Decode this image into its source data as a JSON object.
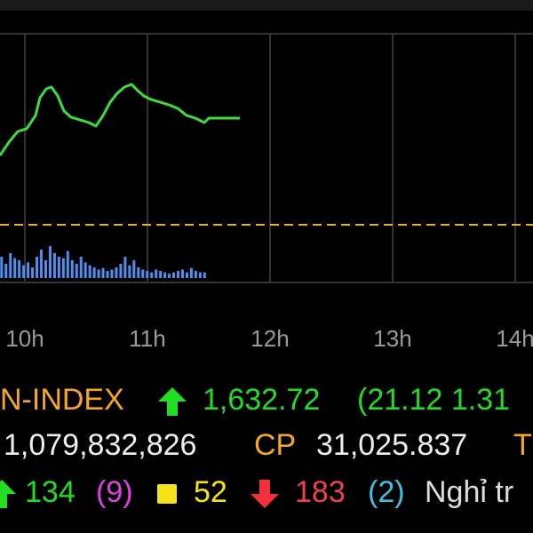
{
  "chart_data": {
    "type": "line",
    "xlim": [
      9.797,
      14.145
    ],
    "xticks": [
      {
        "value": 10,
        "label": "10h"
      },
      {
        "value": 11,
        "label": "11h"
      },
      {
        "value": 12,
        "label": "12h"
      },
      {
        "value": 13,
        "label": "13h"
      },
      {
        "value": 14,
        "label": "14h"
      }
    ],
    "ylim": [
      1600.16,
      1649.44
    ],
    "reference": 1611.6,
    "reference_color": "#e6b422",
    "grid": true,
    "x": [
      9.797,
      9.87,
      9.942,
      10.014,
      10.087,
      10.123,
      10.174,
      10.217,
      10.268,
      10.319,
      10.377,
      10.449,
      10.522,
      10.58,
      10.638,
      10.696,
      10.754,
      10.812,
      10.87,
      10.92,
      10.971,
      11.029,
      11.101,
      11.174,
      11.246,
      11.319,
      11.391,
      11.464,
      11.5,
      11.754
    ],
    "series": [
      {
        "color": "#3ddc3d",
        "values": [
          1625.33,
          1627.97,
          1630.08,
          1630.61,
          1633.25,
          1636.77,
          1638.53,
          1638.88,
          1637.12,
          1634.13,
          1632.9,
          1632.37,
          1631.84,
          1631.14,
          1633.25,
          1635.89,
          1637.65,
          1638.88,
          1639.41,
          1638.18,
          1637.12,
          1636.42,
          1635.89,
          1635.36,
          1634.66,
          1633.25,
          1632.72,
          1631.84,
          1632.72,
          1632.72
        ]
      }
    ],
    "volume": {
      "color": "#4f8fef",
      "y2lim": [
        0,
        100
      ],
      "x": [
        9.81,
        9.846,
        9.882,
        9.918,
        9.954,
        9.99,
        10.026,
        10.062,
        10.098,
        10.134,
        10.17,
        10.206,
        10.242,
        10.278,
        10.314,
        10.35,
        10.386,
        10.422,
        10.458,
        10.494,
        10.53,
        10.566,
        10.602,
        10.638,
        10.674,
        10.71,
        10.746,
        10.782,
        10.818,
        10.854,
        10.89,
        10.926,
        10.962,
        10.998,
        11.034,
        11.07,
        11.106,
        11.142,
        11.178,
        11.214,
        11.25,
        11.286,
        11.322,
        11.358,
        11.394,
        11.43,
        11.466
      ],
      "values": [
        30,
        20,
        35,
        28,
        25,
        18,
        22,
        15,
        30,
        40,
        25,
        45,
        35,
        30,
        28,
        38,
        25,
        20,
        30,
        22,
        18,
        15,
        12,
        14,
        10,
        12,
        15,
        20,
        30,
        18,
        25,
        15,
        12,
        10,
        8,
        12,
        10,
        8,
        6,
        8,
        10,
        12,
        8,
        14,
        10,
        8,
        8
      ]
    }
  },
  "info": {
    "index_name": "N-INDEX",
    "index_value": "1,632.72",
    "index_change": "(21.12 1.31",
    "volume": "1,079,832,826",
    "cp_label": "CP",
    "cp_value": "31,025.837",
    "t_label": "T",
    "up_count": "134",
    "ceiling_count": "(9)",
    "flat_count": "52",
    "down_count": "183",
    "floor_count": "(2)",
    "suspended": "Nghỉ tr"
  }
}
